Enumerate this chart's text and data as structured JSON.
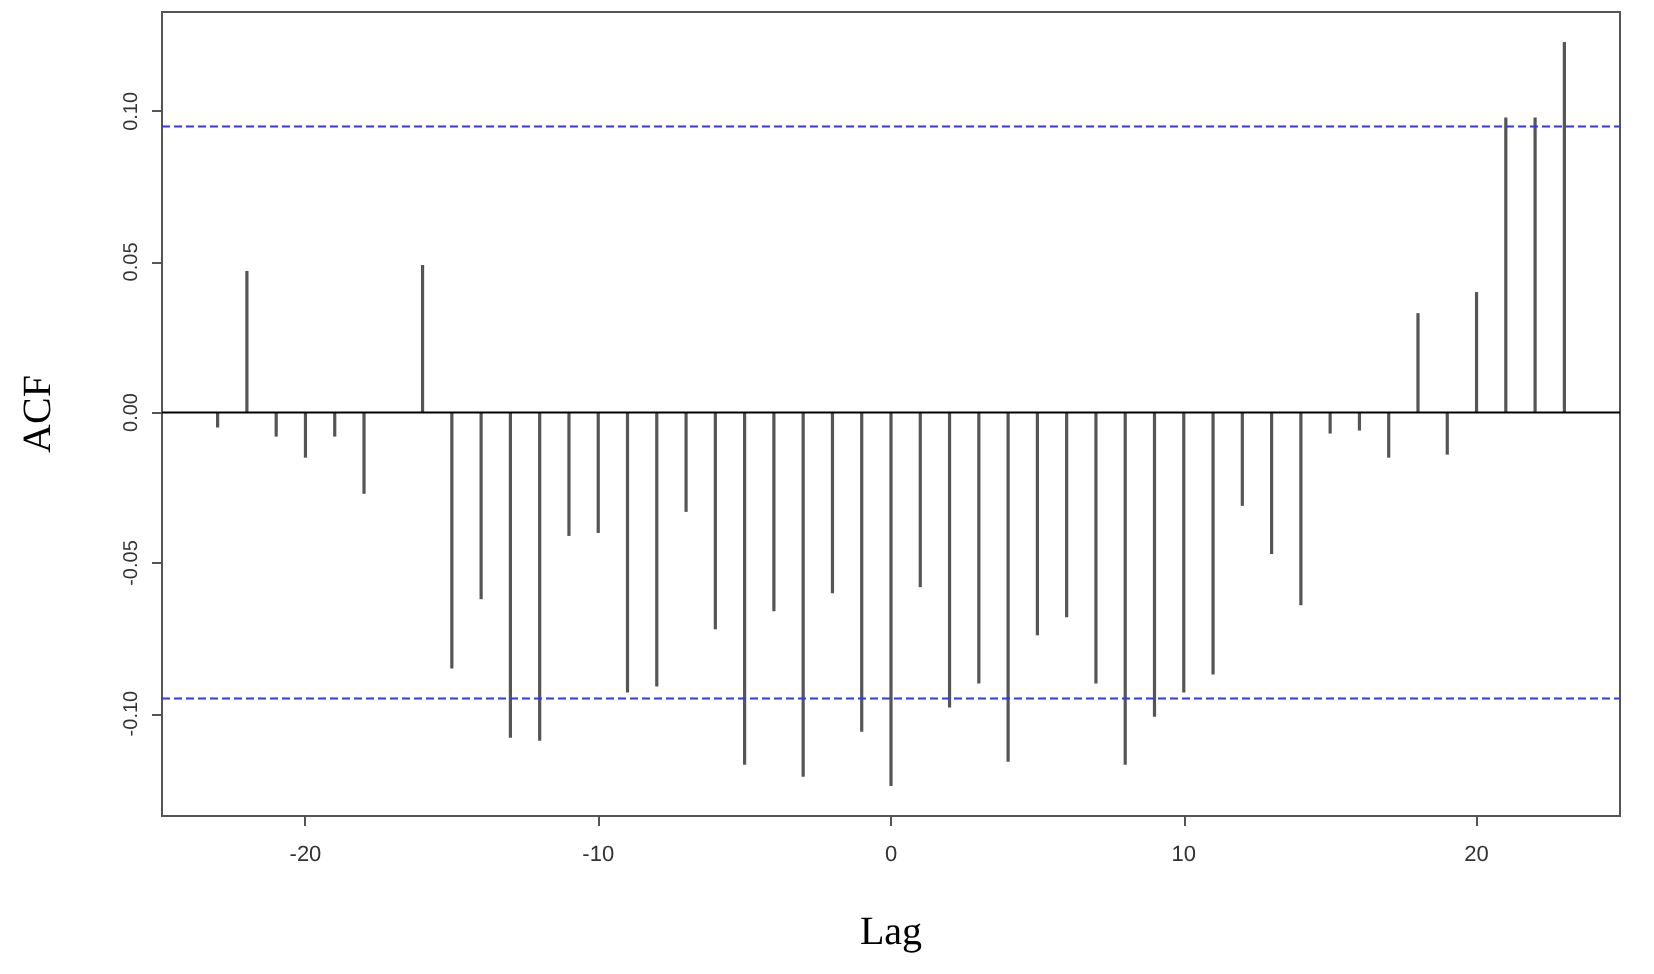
{
  "chart_data": {
    "type": "bar",
    "xlabel": "Lag",
    "ylabel": "ACF",
    "x": [
      -23,
      -22,
      -21,
      -20,
      -19,
      -18,
      -17,
      -16,
      -15,
      -14,
      -13,
      -12,
      -11,
      -10,
      -9,
      -8,
      -7,
      -6,
      -5,
      -4,
      -3,
      -2,
      -1,
      0,
      1,
      2,
      3,
      4,
      5,
      6,
      7,
      8,
      9,
      10,
      11,
      12,
      13,
      14,
      15,
      16,
      17,
      18,
      19,
      20,
      21,
      22,
      23
    ],
    "values": [
      -0.005,
      0.047,
      -0.008,
      -0.015,
      -0.008,
      -0.027,
      0.0,
      0.049,
      -0.085,
      -0.062,
      -0.108,
      -0.109,
      -0.041,
      -0.04,
      -0.093,
      -0.091,
      -0.033,
      -0.072,
      -0.117,
      -0.066,
      -0.121,
      -0.06,
      -0.106,
      -0.124,
      -0.058,
      -0.098,
      -0.09,
      -0.116,
      -0.074,
      -0.068,
      -0.09,
      -0.117,
      -0.101,
      -0.093,
      -0.087,
      -0.031,
      -0.047,
      -0.064,
      -0.007,
      -0.006,
      -0.015,
      0.033,
      -0.014,
      0.04,
      0.098,
      0.098,
      0.123
    ],
    "color": "#555555",
    "xlim": [
      -24.9,
      24.9
    ],
    "xticks": [
      -20,
      -10,
      0,
      10,
      20
    ],
    "ylim": [
      -0.134,
      0.133
    ],
    "yticks": [
      {
        "value": -0.1,
        "label": "-0.10"
      },
      {
        "value": -0.05,
        "label": "-0.05"
      },
      {
        "value": 0,
        "label": "0.00"
      },
      {
        "value": 0.05,
        "label": "0.05"
      },
      {
        "value": 0.1,
        "label": "0.10"
      }
    ],
    "ref_lines": [
      {
        "axis": "y",
        "value": 0.095,
        "color": "#3333ff",
        "line_style": "dashed"
      },
      {
        "axis": "y",
        "value": -0.095,
        "color": "#3333ff",
        "line_style": "dashed"
      },
      {
        "axis": "y",
        "value": 0,
        "color": "#000000",
        "line_style": "solid"
      }
    ],
    "grid": false
  }
}
